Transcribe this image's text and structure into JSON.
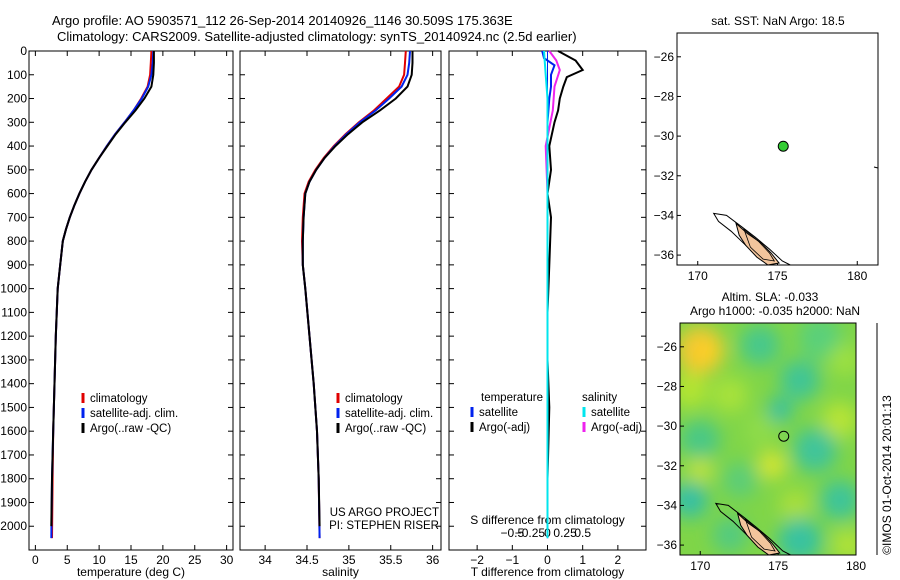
{
  "header": {
    "line1": "Argo profile: AO 5903571_112 26-Sep-2014 20140926_1146 30.509S 175.363E",
    "line2": "Climatology: CARS2009. Satellite-adjusted climatology: synTS_20140924.nc (2.5d earlier)"
  },
  "colors": {
    "climatology": "#e00000",
    "satellite": "#0022ee",
    "argo": "#000000",
    "satellite_salinity": "#00e6ee",
    "argo_salinity": "#ee22ee",
    "land": "#f2c49c",
    "marker": "#33cc33"
  },
  "chart_data": [
    {
      "type": "line",
      "xlabel": "temperature (deg C)",
      "ylabel": "",
      "xlim": [
        -1,
        31
      ],
      "ylim": [
        2100,
        0
      ],
      "xticks": [
        0,
        5,
        10,
        15,
        20,
        25,
        30
      ],
      "yticks": [
        0,
        100,
        200,
        300,
        400,
        500,
        600,
        700,
        800,
        900,
        1000,
        1100,
        1200,
        1300,
        1400,
        1500,
        1600,
        1700,
        1800,
        1900,
        2000
      ],
      "legend": [
        "climatology",
        "satellite-adj. clim.",
        "Argo(..raw -QC)"
      ],
      "legend_position": "center-left",
      "series": [
        {
          "name": "climatology",
          "color": "#e00000",
          "x": [
            18.2,
            18.1,
            18.0,
            17.6,
            16.6,
            15.4,
            14.0,
            12.5,
            11.2,
            10.0,
            8.8,
            7.8,
            6.9,
            6.1,
            5.4,
            4.8,
            4.3,
            3.9,
            3.5,
            3.2,
            3.0,
            2.8,
            2.7,
            2.6
          ],
          "y": [
            0,
            50,
            100,
            150,
            200,
            250,
            300,
            350,
            400,
            450,
            500,
            550,
            600,
            650,
            700,
            750,
            800,
            900,
            1000,
            1200,
            1400,
            1600,
            1800,
            2050
          ]
        },
        {
          "name": "satellite-adj. clim.",
          "color": "#0022ee",
          "x": [
            18.5,
            18.4,
            18.2,
            17.7,
            16.7,
            15.4,
            14.0,
            12.5,
            11.2,
            10.0,
            8.8,
            7.8,
            6.9,
            6.1,
            5.4,
            4.8,
            4.3,
            3.9,
            3.5,
            3.2,
            3.0,
            2.8,
            2.6,
            2.5
          ],
          "y": [
            0,
            50,
            100,
            150,
            200,
            250,
            300,
            350,
            400,
            450,
            500,
            550,
            600,
            650,
            700,
            750,
            800,
            900,
            1000,
            1200,
            1400,
            1600,
            1800,
            2050
          ]
        },
        {
          "name": "Argo(..raw -QC)",
          "color": "#000000",
          "x": [
            18.6,
            18.6,
            18.5,
            18.2,
            17.1,
            15.7,
            14.1,
            12.6,
            11.3,
            10.0,
            8.8,
            7.8,
            6.9,
            6.1,
            5.4,
            4.8,
            4.3,
            3.9,
            3.5,
            3.2,
            3.0,
            2.8,
            2.6,
            2.5
          ],
          "y": [
            0,
            50,
            100,
            150,
            200,
            250,
            300,
            350,
            400,
            450,
            500,
            550,
            600,
            650,
            700,
            750,
            800,
            900,
            1000,
            1200,
            1400,
            1600,
            1800,
            2000
          ]
        }
      ]
    },
    {
      "type": "line",
      "xlabel": "salinity",
      "ylabel": "",
      "xlim": [
        33.7,
        36.1
      ],
      "ylim": [
        2100,
        0
      ],
      "xticks": [
        34,
        34.5,
        35,
        35.5,
        36
      ],
      "legend": [
        "climatology",
        "satellite-adj. clim.",
        "Argo(..raw -QC)"
      ],
      "legend_position": "center-right",
      "annotations": [
        "US ARGO PROJECT",
        "PI: STEPHEN RISER"
      ],
      "series": [
        {
          "name": "climatology",
          "color": "#e00000",
          "x": [
            35.68,
            35.67,
            35.66,
            35.6,
            35.45,
            35.3,
            35.12,
            34.96,
            34.82,
            34.7,
            34.6,
            34.52,
            34.47,
            34.45,
            34.44,
            34.45,
            34.48,
            34.53,
            34.58,
            34.62,
            34.64,
            34.65
          ],
          "y": [
            0,
            50,
            100,
            150,
            200,
            250,
            300,
            350,
            400,
            450,
            500,
            550,
            600,
            700,
            800,
            900,
            1000,
            1200,
            1400,
            1600,
            1800,
            2050
          ]
        },
        {
          "name": "satellite-adj. clim.",
          "color": "#0022ee",
          "x": [
            35.73,
            35.72,
            35.7,
            35.63,
            35.48,
            35.32,
            35.13,
            34.97,
            34.83,
            34.71,
            34.61,
            34.53,
            34.48,
            34.46,
            34.45,
            34.45,
            34.48,
            34.53,
            34.58,
            34.62,
            34.64,
            34.65
          ],
          "y": [
            0,
            50,
            100,
            150,
            200,
            250,
            300,
            350,
            400,
            450,
            500,
            550,
            600,
            700,
            800,
            900,
            1000,
            1200,
            1400,
            1600,
            1800,
            2050
          ]
        },
        {
          "name": "Argo(..raw -QC)",
          "color": "#000000",
          "x": [
            35.76,
            35.76,
            35.75,
            35.7,
            35.56,
            35.37,
            35.16,
            34.99,
            34.84,
            34.71,
            34.61,
            34.53,
            34.48,
            34.46,
            34.45,
            34.45,
            34.48,
            34.53,
            34.58,
            34.62,
            34.64,
            34.65
          ],
          "y": [
            0,
            50,
            100,
            150,
            200,
            250,
            300,
            350,
            400,
            450,
            500,
            550,
            600,
            700,
            800,
            900,
            1000,
            1200,
            1400,
            1600,
            1800,
            2000
          ]
        }
      ]
    },
    {
      "type": "line",
      "xlabel": "T difference from climatology",
      "xlabel_top": "S difference from climatology",
      "xlim": [
        -2.8,
        2.8
      ],
      "ylim": [
        2100,
        0
      ],
      "xticks": [
        -2,
        -1,
        0,
        1,
        2
      ],
      "xtick_labels": [
        "−2",
        "−1",
        "0",
        "1",
        "2"
      ],
      "s_ticks": [
        -0.5,
        -0.25,
        0,
        0.25,
        0.5
      ],
      "s_tick_labels": [
        "−0.5",
        "−0.25",
        "0",
        "0.25",
        "0.5"
      ],
      "legend_groups": [
        {
          "title": "temperature",
          "items": [
            "satellite",
            "Argo(-adj)"
          ]
        },
        {
          "title": "salinity",
          "items": [
            "satellite",
            "Argo(-adj)"
          ]
        }
      ],
      "series": [
        {
          "name": "temperature satellite",
          "color": "#0022ee",
          "x": [
            -0.15,
            -0.1,
            0.2,
            0.1,
            0.1,
            0.05,
            0.0,
            0.0,
            0.0,
            0.0,
            0.0,
            0.0,
            0.0,
            0.0,
            0.0
          ],
          "y": [
            0,
            30,
            60,
            100,
            150,
            200,
            300,
            400,
            500,
            700,
            900,
            1200,
            1500,
            1800,
            2050
          ]
        },
        {
          "name": "temperature Argo(-adj)",
          "color": "#000000",
          "x": [
            0.3,
            0.8,
            1.0,
            0.55,
            0.45,
            0.35,
            0.3,
            0.2,
            0.05,
            0.1,
            0.0,
            0.1,
            0.05,
            0.0,
            0.0,
            0.05,
            0.0,
            0.0
          ],
          "y": [
            0,
            40,
            80,
            110,
            150,
            200,
            250,
            300,
            400,
            500,
            600,
            700,
            900,
            1100,
            1300,
            1500,
            1800,
            2000
          ]
        },
        {
          "name": "salinity satellite",
          "color": "#00e6ee",
          "x": [
            -0.1,
            -0.05,
            0.0,
            0.0,
            0.0,
            0.0,
            0.0,
            0.0,
            0.0,
            0.0,
            0.0
          ],
          "y": [
            0,
            100,
            200,
            300,
            400,
            600,
            800,
            1000,
            1400,
            1800,
            2050
          ]
        },
        {
          "name": "salinity Argo(-adj)",
          "color": "#ee22ee",
          "x": [
            0.05,
            0.25,
            0.35,
            0.2,
            0.15,
            -0.05,
            0.0,
            0.0,
            0.0,
            0.0,
            0.0,
            0.0
          ],
          "y": [
            0,
            40,
            80,
            150,
            250,
            400,
            600,
            800,
            1000,
            1400,
            1800,
            2000
          ]
        }
      ]
    },
    {
      "type": "scatter",
      "title": "sat. SST: NaN Argo: 18.5",
      "xlim": [
        168.7,
        181.3
      ],
      "ylim": [
        -36.5,
        -24.8
      ],
      "xticks": [
        170,
        175,
        180
      ],
      "yticks": [
        -26,
        -28,
        -30,
        -32,
        -34,
        -36
      ],
      "points": [
        {
          "x": 175.36,
          "y": -30.51
        }
      ]
    },
    {
      "type": "heatmap",
      "title_line1": "Altim. SLA: -0.033",
      "title_line2": "Argo h1000: -0.035 h2000: NaN",
      "xlim": [
        168.7,
        180.0
      ],
      "ylim": [
        -36.5,
        -24.8
      ],
      "xticks": [
        170,
        175,
        180
      ],
      "yticks": [
        -26,
        -28,
        -30,
        -32,
        -34,
        -36
      ],
      "points": [
        {
          "x": 175.36,
          "y": -30.51
        }
      ]
    }
  ],
  "footer": {
    "side_label": "©IMOS 01-Oct-2014 20:01:13"
  }
}
